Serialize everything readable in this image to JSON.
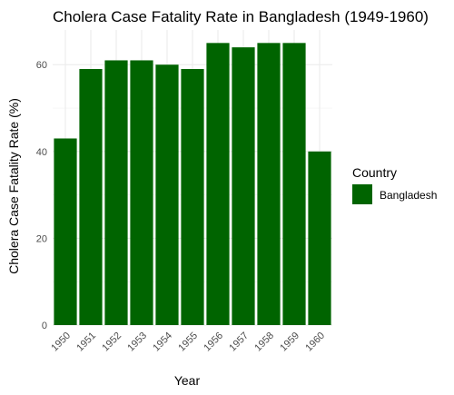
{
  "chart_data": {
    "type": "bar",
    "title": "Cholera Case Fatality Rate in Bangladesh (1949-1960)",
    "xlabel": "Year",
    "ylabel": "Cholera Case Fatality Rate (%)",
    "categories": [
      "1950",
      "1951",
      "1952",
      "1953",
      "1954",
      "1955",
      "1956",
      "1957",
      "1958",
      "1959",
      "1960"
    ],
    "series": [
      {
        "name": "Bangladesh",
        "color": "#006400",
        "values": [
          43,
          59,
          61,
          61,
          60,
          59,
          65,
          64,
          65,
          65,
          40
        ]
      }
    ],
    "ylim": [
      0,
      68
    ],
    "yticks": [
      0,
      20,
      40,
      60
    ],
    "grid": true,
    "legend": {
      "title": "Country",
      "placement": "right"
    }
  }
}
